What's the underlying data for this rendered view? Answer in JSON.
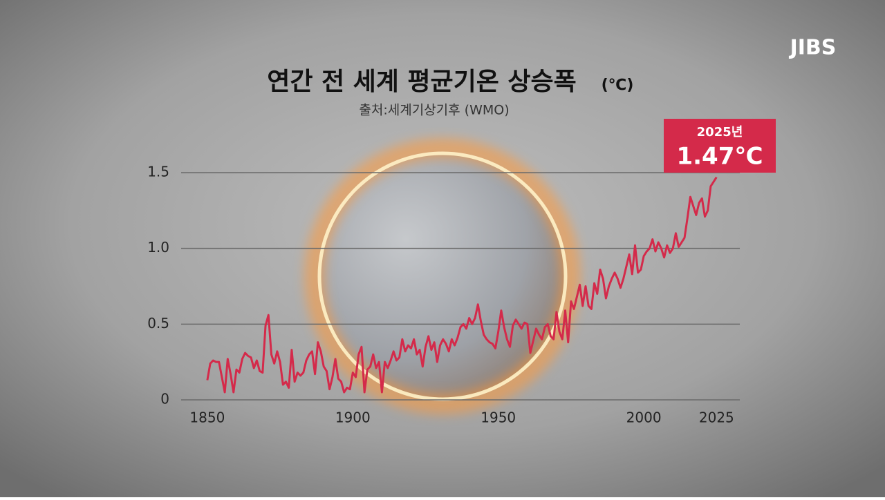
{
  "logo": "JIBS",
  "chart_data": {
    "type": "line",
    "title": "연간 전 세계 평균기온 상승폭",
    "title_unit": "(℃)",
    "subtitle": "출처:세계기상기후 (WMO)",
    "annotation": {
      "year_label": "2025년",
      "value_label": "1.47℃"
    },
    "x": [
      1850,
      1851,
      1852,
      1853,
      1854,
      1855,
      1856,
      1857,
      1858,
      1859,
      1860,
      1861,
      1862,
      1863,
      1864,
      1865,
      1866,
      1867,
      1868,
      1869,
      1870,
      1871,
      1872,
      1873,
      1874,
      1875,
      1876,
      1877,
      1878,
      1879,
      1880,
      1881,
      1882,
      1883,
      1884,
      1885,
      1886,
      1887,
      1888,
      1889,
      1890,
      1891,
      1892,
      1893,
      1894,
      1895,
      1896,
      1897,
      1898,
      1899,
      1900,
      1901,
      1902,
      1903,
      1904,
      1905,
      1906,
      1907,
      1908,
      1909,
      1910,
      1911,
      1912,
      1913,
      1914,
      1915,
      1916,
      1917,
      1918,
      1919,
      1920,
      1921,
      1922,
      1923,
      1924,
      1925,
      1926,
      1927,
      1928,
      1929,
      1930,
      1931,
      1932,
      1933,
      1934,
      1935,
      1936,
      1937,
      1938,
      1939,
      1940,
      1941,
      1942,
      1943,
      1944,
      1945,
      1946,
      1947,
      1948,
      1949,
      1950,
      1951,
      1952,
      1953,
      1954,
      1955,
      1956,
      1957,
      1958,
      1959,
      1960,
      1961,
      1962,
      1963,
      1964,
      1965,
      1966,
      1967,
      1968,
      1969,
      1970,
      1971,
      1972,
      1973,
      1974,
      1975,
      1976,
      1977,
      1978,
      1979,
      1980,
      1981,
      1982,
      1983,
      1984,
      1985,
      1986,
      1987,
      1988,
      1989,
      1990,
      1991,
      1992,
      1993,
      1994,
      1995,
      1996,
      1997,
      1998,
      1999,
      2000,
      2001,
      2002,
      2003,
      2004,
      2005,
      2006,
      2007,
      2008,
      2009,
      2010,
      2011,
      2012,
      2013,
      2014,
      2015,
      2016,
      2017,
      2018,
      2019,
      2020,
      2021,
      2022,
      2023,
      2024,
      2025
    ],
    "series": [
      {
        "color": "#d42a4a",
        "values": [
          0.13,
          0.24,
          0.26,
          0.25,
          0.25,
          0.15,
          0.05,
          0.27,
          0.17,
          0.05,
          0.2,
          0.18,
          0.27,
          0.31,
          0.29,
          0.28,
          0.21,
          0.26,
          0.19,
          0.18,
          0.49,
          0.56,
          0.3,
          0.24,
          0.32,
          0.25,
          0.1,
          0.12,
          0.08,
          0.33,
          0.12,
          0.18,
          0.16,
          0.18,
          0.26,
          0.3,
          0.32,
          0.17,
          0.38,
          0.32,
          0.22,
          0.19,
          0.07,
          0.15,
          0.27,
          0.14,
          0.12,
          0.05,
          0.08,
          0.07,
          0.18,
          0.15,
          0.3,
          0.35,
          0.05,
          0.2,
          0.22,
          0.3,
          0.21,
          0.25,
          0.05,
          0.25,
          0.21,
          0.26,
          0.32,
          0.26,
          0.28,
          0.4,
          0.32,
          0.36,
          0.34,
          0.4,
          0.3,
          0.33,
          0.22,
          0.35,
          0.42,
          0.33,
          0.38,
          0.25,
          0.36,
          0.4,
          0.37,
          0.32,
          0.4,
          0.36,
          0.41,
          0.48,
          0.5,
          0.47,
          0.54,
          0.5,
          0.54,
          0.63,
          0.52,
          0.43,
          0.4,
          0.38,
          0.37,
          0.34,
          0.45,
          0.59,
          0.48,
          0.4,
          0.35,
          0.49,
          0.53,
          0.5,
          0.47,
          0.51,
          0.5,
          0.31,
          0.39,
          0.47,
          0.43,
          0.4,
          0.48,
          0.5,
          0.42,
          0.4,
          0.58,
          0.45,
          0.4,
          0.59,
          0.38,
          0.65,
          0.6,
          0.68,
          0.76,
          0.62,
          0.75,
          0.62,
          0.6,
          0.77,
          0.7,
          0.86,
          0.8,
          0.67,
          0.75,
          0.8,
          0.84,
          0.8,
          0.74,
          0.8,
          0.88,
          0.96,
          0.83,
          1.02,
          0.84,
          0.86,
          0.95,
          0.98,
          1.0,
          1.06,
          0.98,
          1.04,
          1.0,
          0.94,
          1.02,
          0.97,
          1.0,
          1.1,
          1.01,
          1.04,
          1.07,
          1.2,
          1.34,
          1.28,
          1.22,
          1.3,
          1.33,
          1.21,
          1.25,
          1.41,
          1.44,
          1.47
        ]
      }
    ],
    "xlim": [
      1841,
      2033
    ],
    "xticks": [
      1850,
      1900,
      1950,
      2000,
      2025
    ],
    "ylim": [
      0,
      1.5
    ],
    "yticks": [
      0,
      0.5,
      {
        "value": 1,
        "label": "1.0"
      },
      1.5
    ],
    "grid": true
  }
}
